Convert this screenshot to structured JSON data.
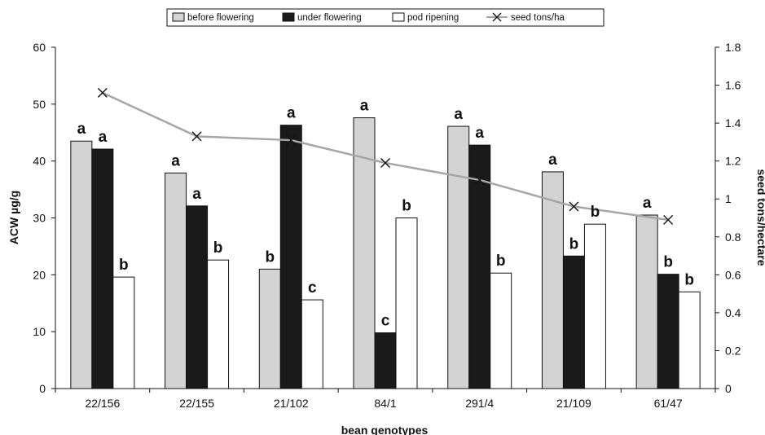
{
  "chart_data": {
    "type": "bar",
    "categories": [
      "22/156",
      "22/155",
      "21/102",
      "84/1",
      "291/4",
      "21/109",
      "61/47"
    ],
    "series": [
      {
        "name": "before flowering",
        "type": "bar",
        "axis": "left",
        "color": "#d3d3d3",
        "values": [
          43.5,
          37.9,
          21.0,
          47.6,
          46.1,
          38.1,
          30.5
        ],
        "labels": [
          "a",
          "a",
          "b",
          "a",
          "a",
          "a",
          "a"
        ]
      },
      {
        "name": "under flowering",
        "type": "bar",
        "axis": "left",
        "color": "#1a1a1a",
        "values": [
          42.1,
          32.1,
          46.3,
          9.8,
          42.8,
          23.3,
          20.1
        ],
        "labels": [
          "a",
          "a",
          "a",
          "c",
          "a",
          "b",
          "b"
        ]
      },
      {
        "name": "pod ripening",
        "type": "bar",
        "axis": "left",
        "color": "#ffffff",
        "values": [
          19.6,
          22.6,
          15.6,
          30.0,
          20.3,
          28.9,
          17.0
        ],
        "labels": [
          "b",
          "b",
          "c",
          "b",
          "b",
          "b",
          "b"
        ]
      },
      {
        "name": "seed tons/ha",
        "type": "line",
        "axis": "right",
        "color": "#a6a6a6",
        "values": [
          1.56,
          1.33,
          1.31,
          1.19,
          1.1,
          0.96,
          0.89
        ]
      }
    ],
    "xlabel": "bean genotypes",
    "ylabel": "ACW µg/g",
    "y2label": "seed tons/hectare",
    "ylim": [
      0,
      60
    ],
    "yticks": [
      "0",
      "10",
      "20",
      "30",
      "40",
      "50",
      "60"
    ],
    "y2lim": [
      0,
      1.8
    ],
    "y2ticks": [
      "0",
      "0.2",
      "0.4",
      "0.6",
      "0.8",
      "1",
      "1.2",
      "1.4",
      "1.6",
      "1.8"
    ],
    "legend_position": "top",
    "grid": false
  }
}
